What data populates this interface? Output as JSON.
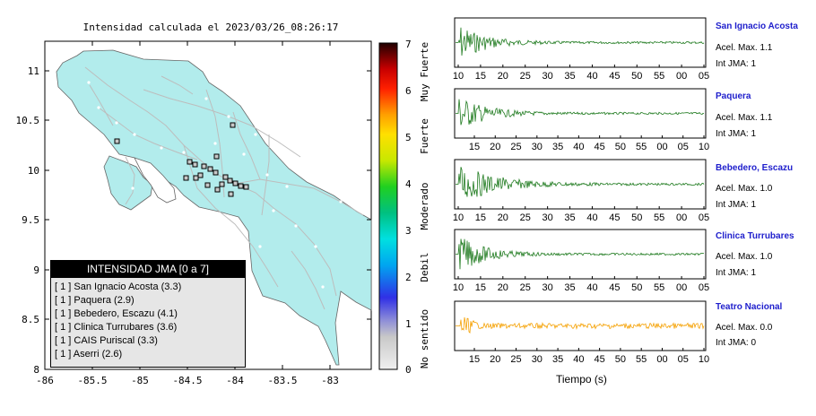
{
  "map": {
    "title": "Intensidad calculada el 2023/03/26_08:26:17",
    "y_ticks": [
      "11",
      "10.5",
      "10",
      "9.5",
      "9",
      "8.5",
      "8"
    ],
    "x_ticks": [
      "-86",
      "-85.5",
      "-85",
      "-84.5",
      "-84",
      "-83.5",
      "-83"
    ],
    "colorbar_ticks": [
      "7",
      "6",
      "5",
      "4",
      "3",
      "2",
      "1",
      "0"
    ],
    "colorbar_labels": [
      "Muy Fuerte",
      "Fuerte",
      "Moderado",
      "Debil",
      "No sentido"
    ],
    "colors": {
      "land": "#b2ecec",
      "sea": "#ffffff",
      "roads": "#c0c0c0"
    }
  },
  "legend": {
    "title": "INTENSIDAD JMA [0 a 7]",
    "items": [
      "[ 1 ]  San Ignacio Acosta (3.3)",
      "[ 1 ]  Paquera (2.9)",
      "[ 1 ]  Bebedero, Escazu (4.1)",
      "[ 1 ]  Clinica Turrubares (3.6)",
      "[ 1 ]  CAIS Puriscal (3.3)",
      "[ 1 ]  Aserri (2.6)"
    ]
  },
  "waveforms": [
    {
      "name": "San Ignacio Acosta",
      "acel": "Acel. Max. 1.1",
      "jma": "Int JMA: 1",
      "color": "#1e7a1e",
      "ticks": [
        "10",
        "15",
        "20",
        "25",
        "30",
        "35",
        "40",
        "45",
        "50",
        "55",
        "00",
        "05"
      ]
    },
    {
      "name": "Paquera",
      "acel": "Acel. Max. 1.1",
      "jma": "Int JMA: 1",
      "color": "#1e7a1e",
      "ticks": [
        "15",
        "20",
        "25",
        "30",
        "35",
        "40",
        "45",
        "50",
        "55",
        "00",
        "05",
        "10"
      ]
    },
    {
      "name": "Bebedero, Escazu",
      "acel": "Acel. Max. 1.0",
      "jma": "Int JMA: 1",
      "color": "#1e7a1e",
      "ticks": [
        "10",
        "15",
        "20",
        "25",
        "30",
        "35",
        "40",
        "45",
        "50",
        "55",
        "00",
        "05"
      ]
    },
    {
      "name": "Clinica Turrubares",
      "acel": "Acel. Max. 1.0",
      "jma": "Int JMA: 1",
      "color": "#1e7a1e",
      "ticks": [
        "10",
        "15",
        "20",
        "25",
        "30",
        "35",
        "40",
        "45",
        "50",
        "55",
        "00",
        "05"
      ]
    },
    {
      "name": "Teatro Nacional",
      "acel": "Acel. Max. 0.0",
      "jma": "Int JMA: 0",
      "color": "#f5a000",
      "ticks": [
        "15",
        "20",
        "25",
        "30",
        "35",
        "40",
        "45",
        "50",
        "55",
        "00",
        "05",
        "10"
      ]
    }
  ],
  "xlabel": "Tiempo (s)"
}
